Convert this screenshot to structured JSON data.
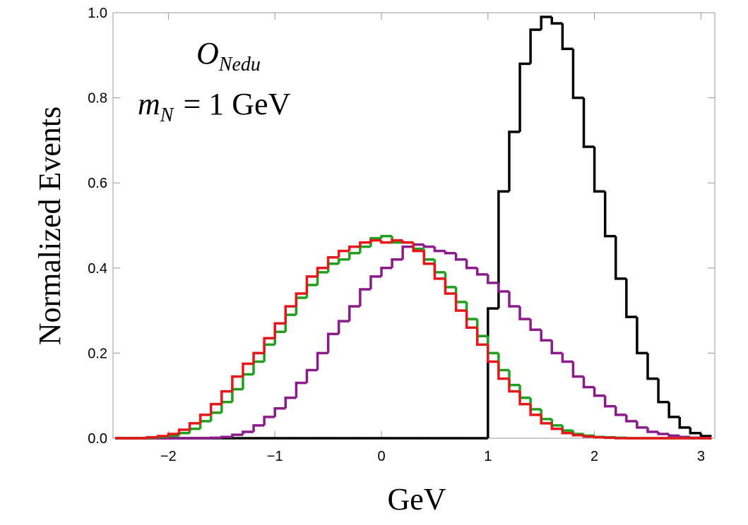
{
  "chart_data": {
    "type": "histogram",
    "xlabel": "GeV",
    "ylabel": "Normalized Events",
    "annotations": [
      {
        "text": "O",
        "sub": "Nedu"
      },
      {
        "text": "m",
        "sub": "N",
        "rest": "= 1 GeV"
      }
    ],
    "bins": [
      -2.5,
      -2.4,
      -2.3,
      -2.2,
      -2.1,
      -2.0,
      -1.9,
      -1.8,
      -1.7,
      -1.6,
      -1.5,
      -1.4,
      -1.3,
      -1.2,
      -1.1,
      -1.0,
      -0.9,
      -0.8,
      -0.7,
      -0.6,
      -0.5,
      -0.4,
      -0.3,
      -0.2,
      -0.1,
      0,
      0.1,
      0.2,
      0.3,
      0.4,
      0.5,
      0.6,
      0.7,
      0.8,
      0.9,
      1.0,
      1.1,
      1.2,
      1.3,
      1.4,
      1.5,
      1.6,
      1.7,
      1.8,
      1.9,
      2.0,
      2.1,
      2.2,
      2.3,
      2.4,
      2.5,
      2.6,
      2.7,
      2.8,
      2.9,
      3.0,
      3.1
    ],
    "series": [
      {
        "color": "#000000",
        "values": [
          0,
          0,
          0,
          0,
          0,
          0,
          0,
          0,
          0,
          0,
          0,
          0,
          0,
          0,
          0,
          0,
          0,
          0,
          0,
          0,
          0,
          0,
          0,
          0,
          0,
          0,
          0,
          0,
          0,
          0,
          0,
          0,
          0,
          0,
          0,
          0.305,
          0.58,
          0.72,
          0.88,
          0.96,
          0.99,
          0.975,
          0.915,
          0.8,
          0.685,
          0.58,
          0.475,
          0.375,
          0.285,
          0.2,
          0.14,
          0.085,
          0.05,
          0.025,
          0.012,
          0.005
        ]
      },
      {
        "color": "#8b1a8b",
        "values": [
          0,
          0,
          0,
          0,
          0,
          0,
          0,
          0,
          0,
          0.001,
          0.003,
          0.008,
          0.015,
          0.03,
          0.05,
          0.07,
          0.095,
          0.13,
          0.16,
          0.2,
          0.245,
          0.275,
          0.31,
          0.35,
          0.38,
          0.4,
          0.42,
          0.45,
          0.455,
          0.45,
          0.44,
          0.435,
          0.42,
          0.4,
          0.385,
          0.365,
          0.345,
          0.31,
          0.28,
          0.255,
          0.23,
          0.2,
          0.18,
          0.145,
          0.12,
          0.1,
          0.075,
          0.055,
          0.04,
          0.025,
          0.015,
          0.01,
          0.006,
          0.003,
          0.001,
          0
        ]
      },
      {
        "color": "#1ea01e",
        "values": [
          0,
          0,
          0,
          0.001,
          0.003,
          0.006,
          0.012,
          0.022,
          0.04,
          0.06,
          0.085,
          0.115,
          0.15,
          0.18,
          0.22,
          0.25,
          0.29,
          0.33,
          0.36,
          0.39,
          0.41,
          0.42,
          0.435,
          0.45,
          0.47,
          0.475,
          0.46,
          0.46,
          0.445,
          0.42,
          0.39,
          0.355,
          0.32,
          0.28,
          0.24,
          0.2,
          0.16,
          0.125,
          0.095,
          0.068,
          0.045,
          0.03,
          0.018,
          0.01,
          0.006,
          0.003,
          0.002,
          0.001,
          0,
          0,
          0,
          0,
          0,
          0,
          0,
          0
        ]
      },
      {
        "color": "#e8151b",
        "values": [
          0,
          0,
          0,
          0.002,
          0.005,
          0.01,
          0.02,
          0.035,
          0.055,
          0.08,
          0.11,
          0.145,
          0.175,
          0.2,
          0.235,
          0.27,
          0.31,
          0.34,
          0.38,
          0.4,
          0.425,
          0.44,
          0.45,
          0.46,
          0.465,
          0.46,
          0.465,
          0.46,
          0.44,
          0.41,
          0.375,
          0.34,
          0.3,
          0.26,
          0.22,
          0.18,
          0.14,
          0.11,
          0.08,
          0.055,
          0.035,
          0.022,
          0.012,
          0.007,
          0.004,
          0.002,
          0.001,
          0,
          0,
          0,
          0,
          0,
          0,
          0,
          0,
          0
        ]
      }
    ],
    "xlim": [
      -2.52,
      3.13
    ],
    "ylim": [
      0,
      1
    ],
    "xticks": [
      {
        "value": -2,
        "label": "−2"
      },
      {
        "value": -1,
        "label": "−1"
      },
      0,
      1,
      2,
      3
    ],
    "yticks": [
      {
        "value": 0,
        "label": "0.0"
      },
      0.2,
      0.4,
      0.6,
      0.8,
      {
        "value": 1,
        "label": "1.0"
      }
    ]
  }
}
